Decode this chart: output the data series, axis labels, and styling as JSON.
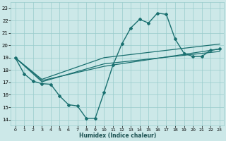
{
  "xlabel": "Humidex (Indice chaleur)",
  "xlim": [
    -0.5,
    23.5
  ],
  "ylim": [
    13.5,
    23.5
  ],
  "xticks": [
    0,
    1,
    2,
    3,
    4,
    5,
    6,
    7,
    8,
    9,
    10,
    11,
    12,
    13,
    14,
    15,
    16,
    17,
    18,
    19,
    20,
    21,
    22,
    23
  ],
  "yticks": [
    14,
    15,
    16,
    17,
    18,
    19,
    20,
    21,
    22,
    23
  ],
  "bg_color": "#cce8e8",
  "grid_color": "#99cccc",
  "line_color": "#1a7070",
  "main_x": [
    0,
    1,
    2,
    3,
    4,
    5,
    6,
    7,
    8,
    9,
    10,
    11,
    12,
    13,
    14,
    15,
    16,
    17,
    18,
    19,
    20,
    21,
    22,
    23
  ],
  "main_y": [
    19.0,
    17.7,
    17.1,
    16.9,
    16.85,
    15.9,
    15.2,
    15.1,
    14.1,
    14.1,
    16.2,
    18.4,
    20.1,
    21.4,
    22.1,
    21.8,
    22.6,
    22.5,
    20.5,
    19.35,
    19.1,
    19.1,
    19.6,
    19.7
  ],
  "trend_lines": [
    {
      "x": [
        0,
        3,
        10,
        23
      ],
      "y": [
        19.0,
        17.15,
        18.3,
        19.7
      ]
    },
    {
      "x": [
        0,
        3,
        10,
        23
      ],
      "y": [
        19.0,
        17.05,
        18.5,
        19.5
      ]
    },
    {
      "x": [
        0,
        3,
        10,
        23
      ],
      "y": [
        19.0,
        17.25,
        19.0,
        20.1
      ]
    }
  ]
}
